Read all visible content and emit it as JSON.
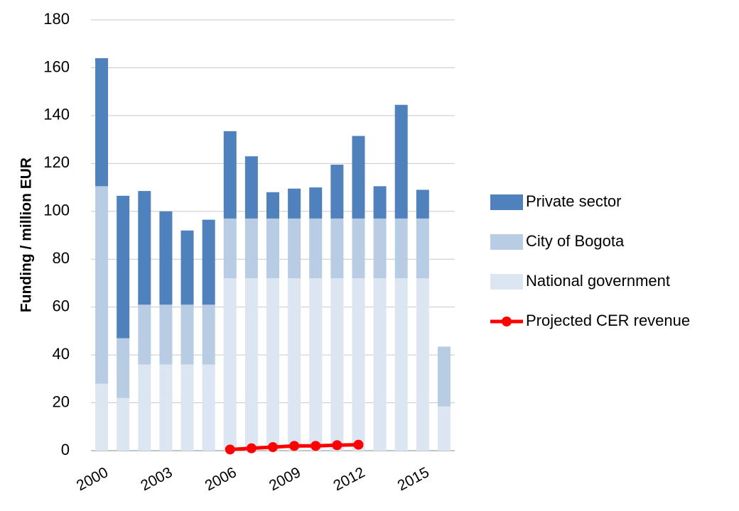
{
  "chart_data": {
    "type": "bar",
    "stacked": true,
    "y_label": "Funding / million EUR",
    "categories": [
      "2000",
      null,
      null,
      "2003",
      null,
      null,
      "2006",
      null,
      null,
      "2009",
      null,
      null,
      "2012",
      null,
      null,
      "2015",
      null
    ],
    "series": [
      {
        "name": "National government",
        "color": "#dce6f2",
        "values": [
          28,
          22,
          36,
          36,
          36,
          36,
          72,
          72,
          72,
          72,
          72,
          72,
          72,
          72,
          72,
          72,
          18.5
        ]
      },
      {
        "name": "City of Bogota",
        "color": "#b8cce4",
        "values": [
          82.5,
          25,
          25,
          25,
          25,
          25,
          25,
          25,
          25,
          25,
          25,
          25,
          25,
          25,
          25,
          25,
          25
        ]
      },
      {
        "name": "Private sector",
        "color": "#4f81bd",
        "values": [
          53.5,
          59.5,
          47.5,
          39,
          31,
          35.5,
          36.5,
          26,
          11,
          12.5,
          13,
          22.5,
          34.5,
          13.5,
          47.5,
          12,
          0
        ]
      },
      {
        "name": "Projected CER revenue",
        "type": "line",
        "color": "#ff0000",
        "values": [
          null,
          null,
          null,
          null,
          null,
          null,
          0.5,
          1,
          1.5,
          2,
          2,
          2.3,
          2.5,
          null,
          null,
          null,
          null
        ]
      }
    ],
    "ylim": [
      0,
      180
    ],
    "yticks": [
      0,
      20,
      40,
      60,
      80,
      100,
      120,
      140,
      160,
      180
    ],
    "grid": true,
    "legend": "right"
  }
}
